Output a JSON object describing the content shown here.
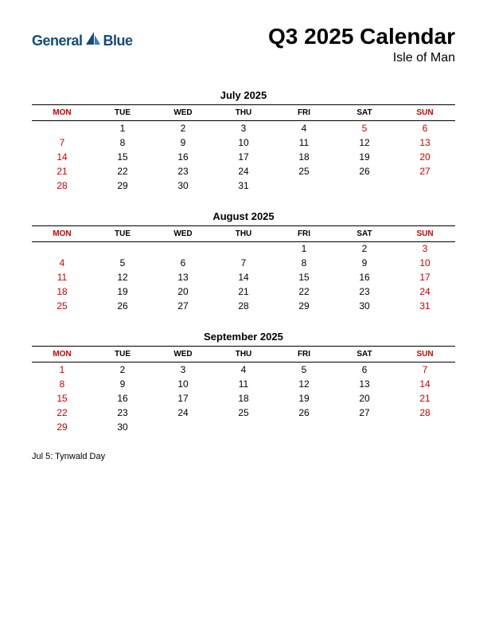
{
  "logo": {
    "text_general": "General",
    "text_blue": "Blue"
  },
  "header": {
    "title": "Q3 2025 Calendar",
    "subtitle": "Isle of Man"
  },
  "day_headers": [
    "MON",
    "TUE",
    "WED",
    "THU",
    "FRI",
    "SAT",
    "SUN"
  ],
  "months": [
    {
      "title": "July 2025",
      "weeks": [
        [
          "",
          "1",
          "2",
          "3",
          "4",
          "5",
          "6"
        ],
        [
          "7",
          "8",
          "9",
          "10",
          "11",
          "12",
          "13"
        ],
        [
          "14",
          "15",
          "16",
          "17",
          "18",
          "19",
          "20"
        ],
        [
          "21",
          "22",
          "23",
          "24",
          "25",
          "26",
          "27"
        ],
        [
          "28",
          "29",
          "30",
          "31",
          "",
          "",
          ""
        ]
      ],
      "red_days": [
        "5",
        "6",
        "7",
        "13",
        "14",
        "20",
        "21",
        "27",
        "28"
      ]
    },
    {
      "title": "August 2025",
      "weeks": [
        [
          "",
          "",
          "",
          "",
          "1",
          "2",
          "3"
        ],
        [
          "4",
          "5",
          "6",
          "7",
          "8",
          "9",
          "10"
        ],
        [
          "11",
          "12",
          "13",
          "14",
          "15",
          "16",
          "17"
        ],
        [
          "18",
          "19",
          "20",
          "21",
          "22",
          "23",
          "24"
        ],
        [
          "25",
          "26",
          "27",
          "28",
          "29",
          "30",
          "31"
        ]
      ],
      "red_days": [
        "3",
        "4",
        "10",
        "11",
        "17",
        "18",
        "24",
        "25",
        "31"
      ]
    },
    {
      "title": "September 2025",
      "weeks": [
        [
          "1",
          "2",
          "3",
          "4",
          "5",
          "6",
          "7"
        ],
        [
          "8",
          "9",
          "10",
          "11",
          "12",
          "13",
          "14"
        ],
        [
          "15",
          "16",
          "17",
          "18",
          "19",
          "20",
          "21"
        ],
        [
          "22",
          "23",
          "24",
          "25",
          "26",
          "27",
          "28"
        ],
        [
          "29",
          "30",
          "",
          "",
          "",
          "",
          ""
        ]
      ],
      "red_days": [
        "1",
        "7",
        "8",
        "14",
        "15",
        "21",
        "22",
        "28",
        "29"
      ]
    }
  ],
  "holidays": "Jul 5: Tynwald Day",
  "colors": {
    "red": "#cc0000",
    "black": "#000000",
    "logo_blue": "#164a7a",
    "background": "#ffffff"
  }
}
